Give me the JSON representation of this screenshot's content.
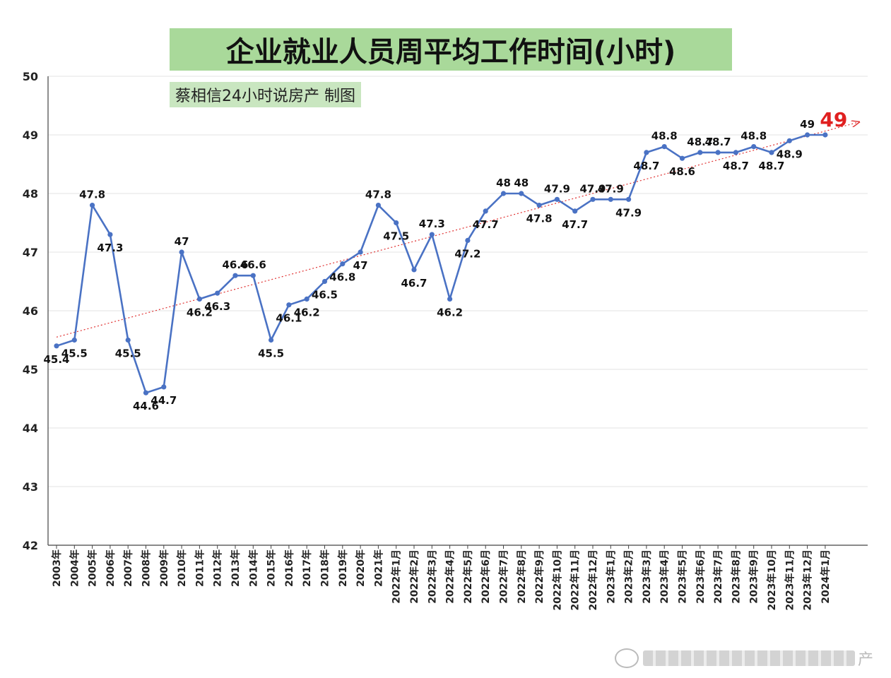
{
  "header": {
    "title": "企业就业人员周平均工作时间(小时)",
    "subtitle": "蔡相信24小时说房产 制图"
  },
  "watermark": {
    "tail_text": "产"
  },
  "chart_data": {
    "type": "line",
    "title": "企业就业人员周平均工作时间(小时)",
    "subtitle": "蔡相信24小时说房产 制图",
    "xlabel": "",
    "ylabel": "",
    "ylim": [
      42,
      50
    ],
    "yticks": [
      "42",
      "43",
      "44",
      "45",
      "46",
      "47",
      "48",
      "49",
      "50"
    ],
    "grid": true,
    "legend": "none",
    "colors": {
      "line": "#4a72c4",
      "trend": "#e03030",
      "highlight": "#e02020",
      "grid": "#e3e3e3"
    },
    "categories": [
      "2003年",
      "2004年",
      "2005年",
      "2006年",
      "2007年",
      "2008年",
      "2009年",
      "2010年",
      "2011年",
      "2012年",
      "2013年",
      "2014年",
      "2015年",
      "2016年",
      "2017年",
      "2018年",
      "2019年",
      "2020年",
      "2021年",
      "2022年1月",
      "2022年2月",
      "2022年3月",
      "2022年4月",
      "2022年5月",
      "2022年6月",
      "2022年7月",
      "2022年8月",
      "2022年9月",
      "2022年10月",
      "2022年11月",
      "2022年12月",
      "2023年1月",
      "2023年2月",
      "2023年3月",
      "2023年4月",
      "2023年5月",
      "2023年6月",
      "2023年7月",
      "2023年8月",
      "2023年9月",
      "2023年10月",
      "2023年11月",
      "2023年12月",
      "2024年1月"
    ],
    "series": [
      {
        "values": [
          45.4,
          45.5,
          47.8,
          47.3,
          45.5,
          44.6,
          44.7,
          47,
          46.2,
          46.3,
          46.6,
          46.6,
          45.5,
          46.1,
          46.2,
          46.5,
          46.8,
          47,
          47.8,
          47.5,
          46.7,
          47.3,
          46.2,
          47.2,
          47.7,
          48,
          48,
          47.8,
          47.9,
          47.7,
          47.9,
          47.9,
          47.9,
          48.7,
          48.8,
          48.6,
          48.7,
          48.7,
          48.7,
          48.8,
          48.7,
          48.9,
          49,
          49
        ]
      }
    ],
    "data_labels": [
      "45.4",
      "45.5",
      "47.8",
      "47.3",
      "45.5",
      "44.6",
      "44.7",
      "47",
      "46.2",
      "46.3",
      "46.6",
      "46.6",
      "45.5",
      "46.1",
      "46.2",
      "46.5",
      "46.8",
      "47",
      "47.8",
      "47.5",
      "46.7",
      "47.3",
      "46.2",
      "47.2",
      "47.7",
      "48",
      "48",
      "47.8",
      "47.9",
      "47.7",
      "47.9",
      "47.9",
      "47.9",
      "48.7",
      "48.8",
      "48.6",
      "48.7",
      "48.7",
      "48.7",
      "48.8",
      "48.7",
      "48.9",
      "49",
      ""
    ],
    "trendline": {
      "type": "linear",
      "start": 45.55,
      "end": 49.22,
      "arrow": true
    },
    "highlight_label": "49"
  }
}
